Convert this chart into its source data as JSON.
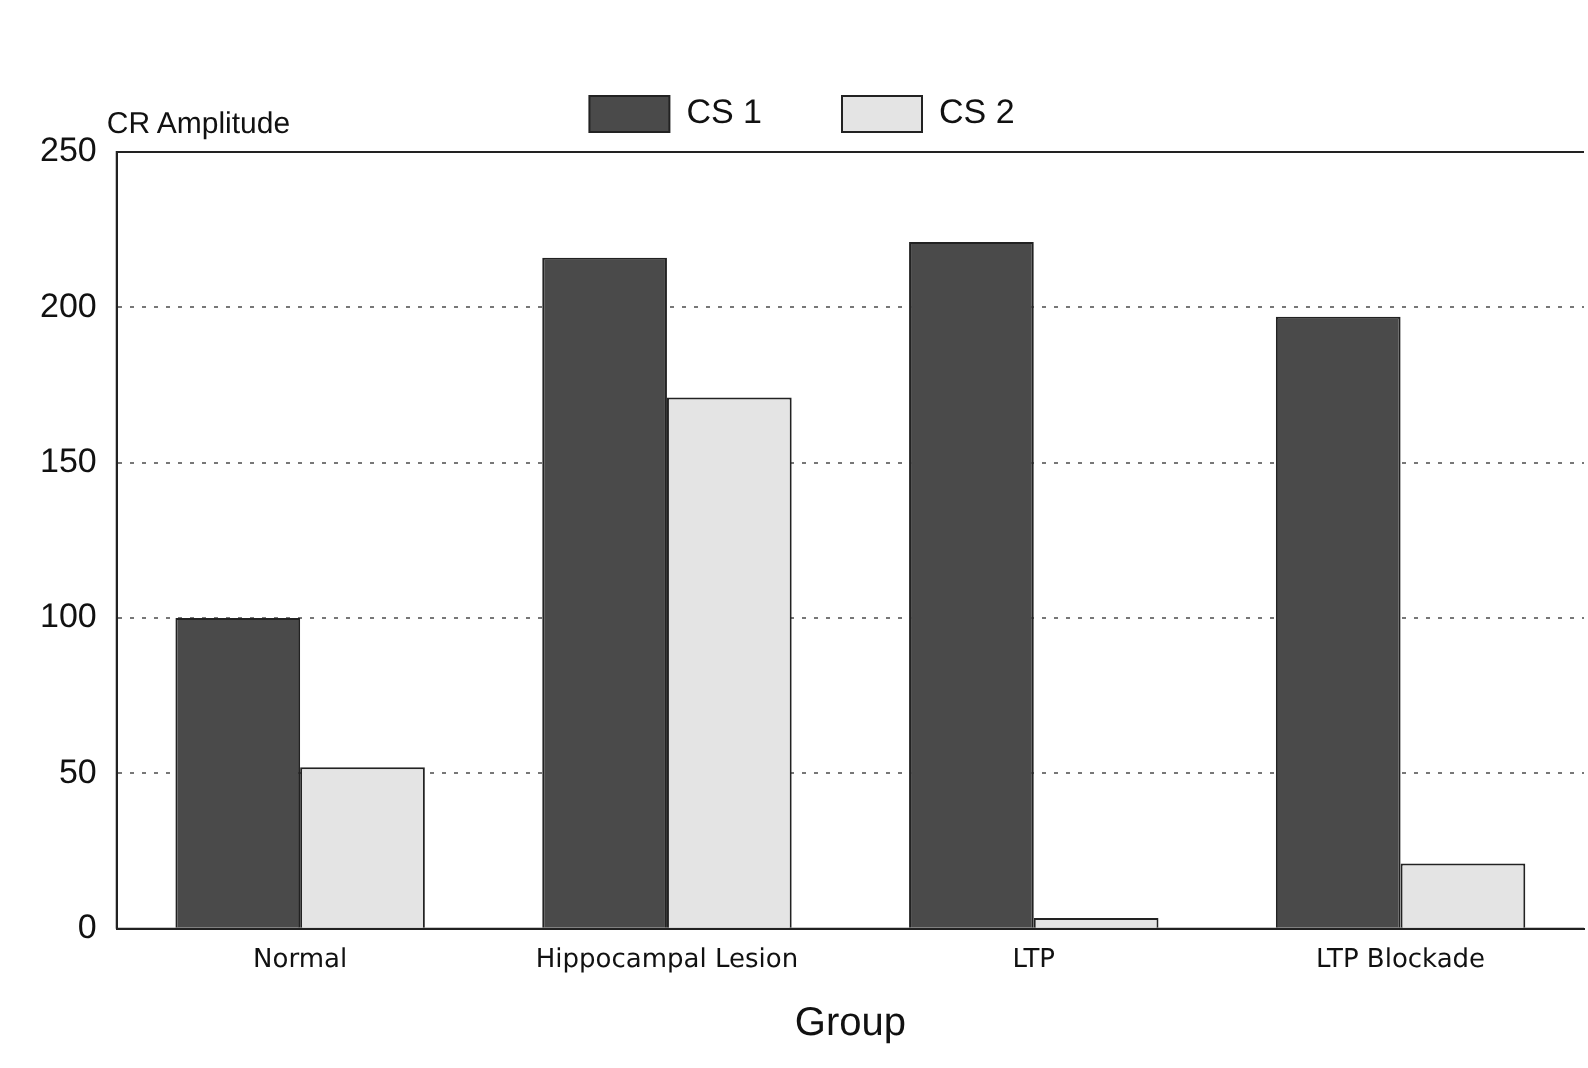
{
  "chart_data": {
    "type": "bar",
    "xlabel": "Group",
    "ylabel": "CR Amplitude",
    "categories": [
      "Normal",
      "Hippocampal Lesion",
      "LTP",
      "LTP Blockade"
    ],
    "series": [
      {
        "name": "CS 1",
        "color": "#4a4a4a",
        "values": [
          100,
          216,
          221,
          197
        ]
      },
      {
        "name": "CS 2",
        "color": "#e4e4e4",
        "values": [
          52,
          171,
          3.5,
          21
        ]
      }
    ],
    "ylim": [
      0,
      250
    ],
    "yticks": [
      0,
      50,
      100,
      150,
      200,
      250
    ],
    "grid": "y",
    "legend": "top"
  }
}
